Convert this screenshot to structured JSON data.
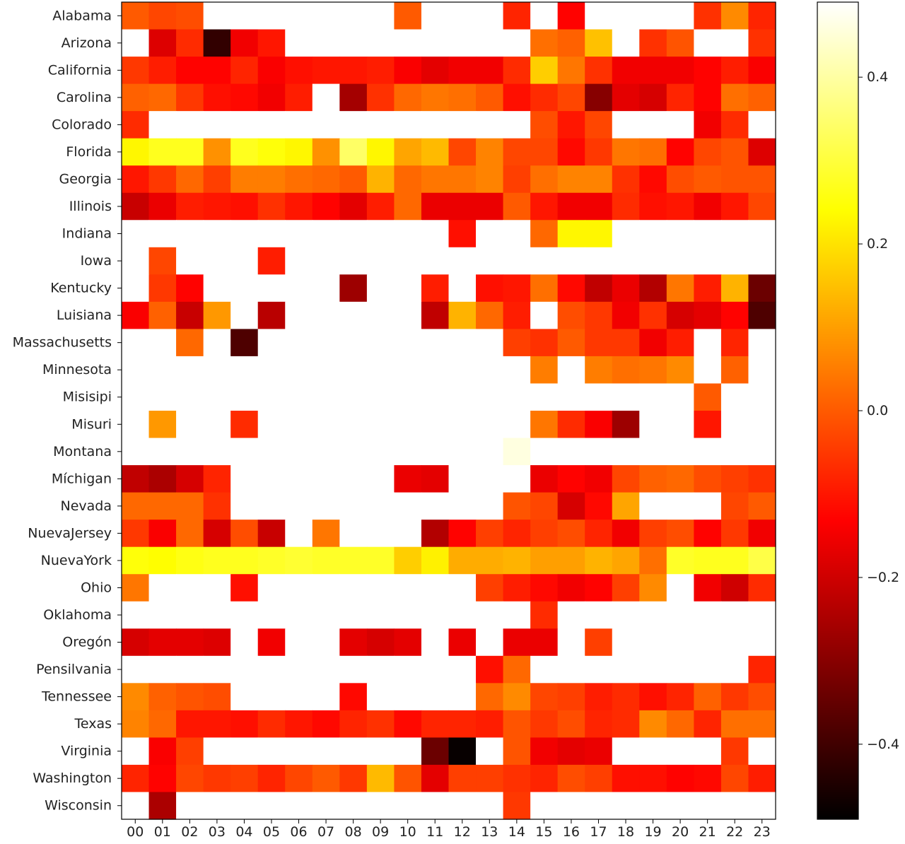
{
  "chart_data": {
    "type": "heatmap",
    "title": "",
    "xlabel": "",
    "ylabel": "",
    "x": [
      "00",
      "01",
      "02",
      "03",
      "04",
      "05",
      "06",
      "07",
      "08",
      "09",
      "10",
      "11",
      "12",
      "13",
      "14",
      "15",
      "16",
      "17",
      "18",
      "19",
      "20",
      "21",
      "22",
      "23"
    ],
    "y": [
      "Alabama",
      "Arizona",
      "California",
      "Carolina",
      "Colorado",
      "Florida",
      "Georgia",
      "Illinois",
      "Indiana",
      "Iowa",
      "Kentucky",
      "Luisiana",
      "Massachusetts",
      "Minnesota",
      "Misisipi",
      "Misuri",
      "Montana",
      "Míchigan",
      "Nevada",
      "NuevaJersey",
      "NuevaYork",
      "Ohio",
      "Oklahoma",
      "Oregón",
      "Pensilvania",
      "Tennessee",
      "Texas",
      "Virginia",
      "Washington",
      "Wisconsin"
    ],
    "values": [
      [
        0.0,
        -0.03,
        -0.02,
        null,
        null,
        null,
        null,
        null,
        null,
        null,
        0.0,
        null,
        null,
        null,
        -0.08,
        null,
        -0.13,
        null,
        null,
        null,
        null,
        -0.06,
        0.07,
        -0.08
      ],
      [
        null,
        -0.18,
        -0.07,
        -0.42,
        -0.15,
        -0.1,
        null,
        null,
        null,
        null,
        null,
        null,
        null,
        null,
        null,
        0.03,
        0.01,
        0.15,
        null,
        -0.06,
        -0.01,
        null,
        null,
        -0.06
      ],
      [
        -0.05,
        -0.09,
        -0.13,
        -0.13,
        -0.08,
        -0.14,
        -0.11,
        -0.1,
        -0.1,
        -0.09,
        -0.14,
        -0.17,
        -0.15,
        -0.15,
        -0.07,
        0.17,
        0.04,
        -0.06,
        -0.15,
        -0.15,
        -0.15,
        -0.13,
        -0.09,
        -0.14
      ],
      [
        0.01,
        0.02,
        -0.05,
        -0.11,
        -0.12,
        -0.15,
        -0.09,
        null,
        -0.26,
        -0.06,
        0.02,
        0.04,
        0.03,
        0.0,
        -0.11,
        -0.07,
        -0.03,
        -0.3,
        -0.17,
        -0.19,
        -0.08,
        -0.13,
        0.03,
        0.01
      ],
      [
        -0.07,
        null,
        null,
        null,
        null,
        null,
        null,
        null,
        null,
        null,
        null,
        null,
        null,
        null,
        null,
        -0.02,
        -0.1,
        -0.03,
        null,
        null,
        null,
        -0.15,
        -0.07,
        null
      ],
      [
        0.23,
        0.27,
        0.27,
        0.08,
        0.27,
        0.25,
        0.23,
        0.08,
        0.34,
        0.23,
        0.11,
        0.14,
        -0.03,
        0.06,
        -0.03,
        -0.03,
        -0.12,
        -0.05,
        0.04,
        0.03,
        -0.13,
        -0.03,
        -0.01,
        -0.18
      ],
      [
        -0.1,
        -0.05,
        0.02,
        -0.04,
        0.05,
        0.05,
        0.03,
        0.02,
        0.0,
        0.13,
        0.02,
        0.04,
        0.04,
        0.06,
        -0.04,
        0.03,
        0.06,
        0.06,
        -0.06,
        -0.12,
        -0.02,
        0.0,
        -0.01,
        -0.01
      ],
      [
        -0.21,
        -0.16,
        -0.09,
        -0.1,
        -0.11,
        -0.06,
        -0.1,
        -0.13,
        -0.17,
        -0.09,
        0.02,
        -0.16,
        -0.16,
        -0.16,
        0.0,
        -0.1,
        -0.15,
        -0.15,
        -0.07,
        -0.11,
        -0.1,
        -0.15,
        -0.1,
        -0.03
      ],
      [
        null,
        null,
        null,
        null,
        null,
        null,
        null,
        null,
        null,
        null,
        null,
        null,
        -0.11,
        null,
        null,
        0.02,
        0.23,
        0.23,
        null,
        null,
        null,
        null,
        null,
        null
      ],
      [
        null,
        -0.03,
        null,
        null,
        null,
        -0.09,
        null,
        null,
        null,
        null,
        null,
        null,
        null,
        null,
        null,
        null,
        null,
        null,
        null,
        null,
        null,
        null,
        null,
        null
      ],
      [
        null,
        -0.05,
        -0.13,
        null,
        null,
        null,
        null,
        null,
        -0.27,
        null,
        null,
        -0.09,
        null,
        -0.11,
        -0.1,
        0.03,
        -0.12,
        -0.22,
        -0.16,
        -0.24,
        0.04,
        -0.09,
        0.13,
        -0.34
      ],
      [
        -0.14,
        0.01,
        -0.21,
        0.09,
        null,
        -0.23,
        null,
        null,
        null,
        null,
        null,
        -0.22,
        0.13,
        0.02,
        -0.09,
        null,
        -0.02,
        -0.05,
        -0.15,
        -0.06,
        -0.19,
        -0.17,
        -0.13,
        -0.38
      ],
      [
        null,
        null,
        0.02,
        null,
        -0.38,
        null,
        null,
        null,
        null,
        null,
        null,
        null,
        null,
        null,
        -0.04,
        -0.06,
        0.0,
        -0.05,
        -0.05,
        -0.15,
        -0.09,
        null,
        -0.08,
        null
      ],
      [
        null,
        null,
        null,
        null,
        null,
        null,
        null,
        null,
        null,
        null,
        null,
        null,
        null,
        null,
        null,
        0.05,
        null,
        0.05,
        0.03,
        0.04,
        0.07,
        null,
        0.01,
        null
      ],
      [
        null,
        null,
        null,
        null,
        null,
        null,
        null,
        null,
        null,
        null,
        null,
        null,
        null,
        null,
        null,
        null,
        null,
        null,
        null,
        null,
        null,
        0.0,
        null,
        null
      ],
      [
        null,
        0.09,
        null,
        null,
        -0.07,
        null,
        null,
        null,
        null,
        null,
        null,
        null,
        null,
        null,
        null,
        0.04,
        -0.07,
        -0.14,
        -0.27,
        null,
        null,
        -0.1,
        null,
        null
      ],
      [
        null,
        null,
        null,
        null,
        null,
        null,
        null,
        null,
        null,
        null,
        null,
        null,
        null,
        null,
        0.46,
        null,
        null,
        null,
        null,
        null,
        null,
        null,
        null,
        null
      ],
      [
        -0.22,
        -0.25,
        -0.19,
        -0.08,
        null,
        null,
        null,
        null,
        null,
        null,
        -0.16,
        -0.17,
        null,
        null,
        null,
        -0.16,
        -0.13,
        -0.15,
        -0.03,
        0.01,
        0.02,
        -0.02,
        -0.04,
        -0.06
      ],
      [
        0.02,
        0.02,
        0.02,
        -0.06,
        null,
        null,
        null,
        null,
        null,
        null,
        null,
        null,
        null,
        null,
        -0.01,
        -0.03,
        -0.19,
        -0.12,
        0.11,
        null,
        null,
        null,
        -0.03,
        0.0
      ],
      [
        -0.05,
        -0.14,
        0.02,
        -0.19,
        -0.02,
        -0.21,
        null,
        0.04,
        null,
        null,
        null,
        -0.24,
        -0.13,
        -0.04,
        -0.08,
        -0.04,
        -0.02,
        -0.08,
        -0.15,
        -0.04,
        -0.02,
        -0.13,
        -0.05,
        -0.15
      ],
      [
        0.25,
        0.24,
        0.26,
        0.27,
        0.27,
        0.28,
        0.29,
        0.28,
        0.28,
        0.28,
        0.17,
        0.22,
        0.12,
        0.12,
        0.13,
        0.1,
        0.1,
        0.13,
        0.11,
        0.03,
        0.28,
        0.27,
        0.27,
        0.31
      ],
      [
        0.04,
        null,
        null,
        null,
        -0.11,
        null,
        null,
        null,
        null,
        null,
        null,
        null,
        null,
        -0.04,
        -0.09,
        -0.12,
        -0.15,
        -0.13,
        -0.04,
        0.07,
        null,
        -0.15,
        -0.2,
        -0.07
      ],
      [
        null,
        null,
        null,
        null,
        null,
        null,
        null,
        null,
        null,
        null,
        null,
        null,
        null,
        null,
        null,
        -0.07,
        null,
        null,
        null,
        null,
        null,
        null,
        null,
        null
      ],
      [
        -0.19,
        -0.17,
        -0.17,
        -0.18,
        null,
        -0.15,
        null,
        null,
        -0.17,
        -0.19,
        -0.17,
        null,
        -0.16,
        null,
        -0.16,
        -0.16,
        null,
        -0.04,
        null,
        null,
        null,
        null,
        null,
        null
      ],
      [
        null,
        null,
        null,
        null,
        null,
        null,
        null,
        null,
        null,
        null,
        null,
        null,
        null,
        -0.11,
        0.02,
        null,
        null,
        null,
        null,
        null,
        null,
        null,
        null,
        -0.08
      ],
      [
        0.07,
        0.01,
        -0.01,
        -0.02,
        null,
        null,
        null,
        null,
        -0.12,
        null,
        null,
        null,
        null,
        0.02,
        0.07,
        -0.03,
        -0.04,
        -0.09,
        -0.07,
        -0.11,
        -0.08,
        0.01,
        -0.05,
        -0.02
      ],
      [
        0.06,
        0.02,
        -0.1,
        -0.1,
        -0.11,
        -0.07,
        -0.1,
        -0.12,
        -0.08,
        -0.06,
        -0.12,
        -0.08,
        -0.08,
        -0.09,
        -0.01,
        -0.05,
        -0.02,
        -0.08,
        -0.07,
        0.07,
        0.02,
        -0.08,
        0.03,
        0.03
      ],
      [
        null,
        -0.14,
        -0.04,
        null,
        null,
        null,
        null,
        null,
        null,
        null,
        null,
        -0.34,
        -0.48,
        null,
        -0.01,
        -0.15,
        -0.17,
        -0.16,
        null,
        null,
        null,
        null,
        -0.05,
        null
      ],
      [
        -0.08,
        -0.13,
        -0.03,
        -0.05,
        -0.04,
        -0.08,
        -0.03,
        0.0,
        -0.05,
        0.14,
        -0.01,
        -0.17,
        -0.04,
        -0.04,
        -0.06,
        -0.08,
        -0.02,
        -0.04,
        -0.11,
        -0.11,
        -0.13,
        -0.12,
        -0.03,
        -0.09
      ],
      [
        null,
        -0.25,
        null,
        null,
        null,
        null,
        null,
        null,
        null,
        null,
        null,
        null,
        null,
        null,
        -0.05,
        null,
        null,
        null,
        null,
        null,
        null,
        null,
        null,
        null
      ]
    ],
    "colormap": "hot",
    "colorbar": {
      "ticks": [
        -0.4,
        -0.2,
        0.0,
        0.2,
        0.4
      ],
      "tick_labels": [
        "−0.4",
        "−0.2",
        "0.0",
        "0.2",
        "0.4"
      ],
      "range": [
        -0.49,
        0.49
      ],
      "position": "right"
    },
    "grid": false,
    "missing_color": "#ffffff"
  }
}
